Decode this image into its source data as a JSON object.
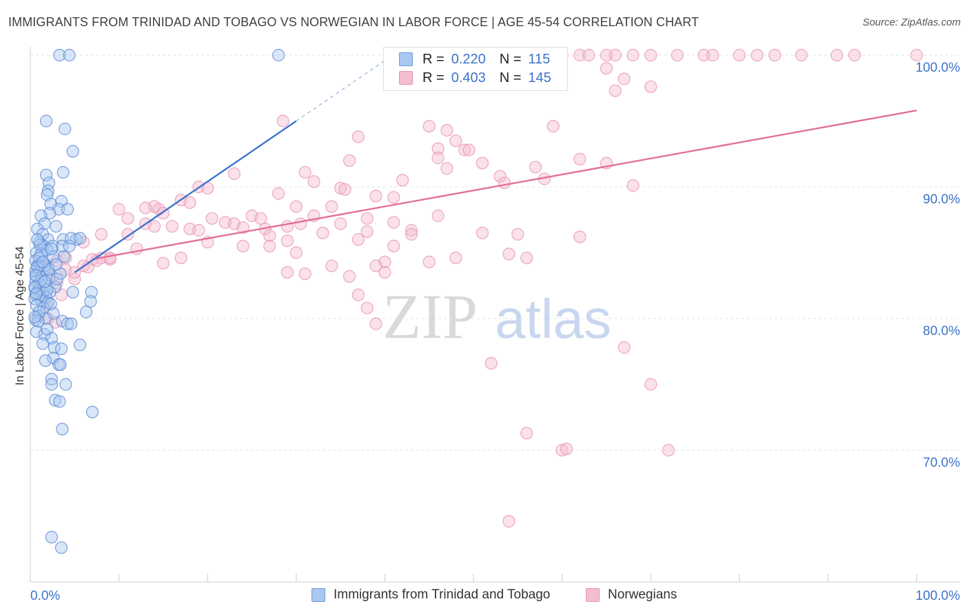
{
  "title": "IMMIGRANTS FROM TRINIDAD AND TOBAGO VS NORWEGIAN IN LABOR FORCE | AGE 45-54 CORRELATION CHART",
  "source": "Source: ZipAtlas.com",
  "watermark": {
    "zip": "ZIP",
    "atlas": "atlas"
  },
  "legend": {
    "r_label": "R =",
    "n_label": "N =",
    "rows": [
      {
        "r": "0.220",
        "n": "115"
      },
      {
        "r": "0.403",
        "n": "145"
      }
    ]
  },
  "bottom_legend": {
    "series1": "Immigrants from Trinidad and Tobago",
    "series2": "Norwegians"
  },
  "x_axis_labels": {
    "left": "0.0%",
    "right": "100.0%"
  },
  "colors": {
    "blue": "#3d73c9",
    "blue_fill": "#a9c7ef",
    "pink": "#e26f99",
    "pink_fill": "#f4bcd0",
    "grid": "#e3e3e3"
  },
  "chart_data": {
    "type": "scatter",
    "xlabel": "",
    "ylabel": "In Labor Force | Age 45-54",
    "xlim": [
      0,
      100
    ],
    "ylim": [
      60,
      100
    ],
    "y_ticks": [
      70,
      80,
      90,
      100
    ],
    "y_tick_labels": [
      "70.0%",
      "80.0%",
      "90.0%",
      "100.0%"
    ],
    "grid": true,
    "series": [
      {
        "name": "Immigrants from Trinidad and Tobago",
        "color": "#3d73c9",
        "R": 0.22,
        "N": 115,
        "trend": {
          "x": [
            5,
            30
          ],
          "y": [
            83.5,
            95.0
          ]
        },
        "trend_dashed": {
          "x": [
            30,
            42
          ],
          "y": [
            95.0,
            100.5
          ]
        },
        "points": [
          [
            3.3,
            100
          ],
          [
            4.4,
            100
          ],
          [
            28,
            100
          ],
          [
            1.8,
            95.0
          ],
          [
            3.9,
            94.4
          ],
          [
            4.8,
            92.7
          ],
          [
            3.7,
            91.1
          ],
          [
            1.8,
            90.9
          ],
          [
            2.1,
            90.3
          ],
          [
            2.0,
            89.7
          ],
          [
            1.9,
            89.4
          ],
          [
            3.5,
            88.9
          ],
          [
            2.3,
            88.7
          ],
          [
            3.2,
            88.3
          ],
          [
            4.2,
            88.3
          ],
          [
            2.2,
            88.0
          ],
          [
            1.2,
            87.8
          ],
          [
            1.6,
            87.2
          ],
          [
            2.9,
            87.0
          ],
          [
            0.8,
            86.8
          ],
          [
            1.4,
            86.4
          ],
          [
            2.0,
            86.0
          ],
          [
            3.7,
            86.0
          ],
          [
            5.2,
            86.0
          ],
          [
            1.0,
            85.8
          ],
          [
            1.5,
            85.5
          ],
          [
            2.5,
            85.5
          ],
          [
            3.6,
            85.5
          ],
          [
            4.4,
            85.5
          ],
          [
            1.9,
            85.2
          ],
          [
            0.7,
            85.0
          ],
          [
            1.2,
            84.9
          ],
          [
            2.6,
            84.7
          ],
          [
            3.8,
            84.7
          ],
          [
            0.6,
            84.4
          ],
          [
            1.5,
            84.2
          ],
          [
            0.8,
            84.0
          ],
          [
            1.1,
            84.0
          ],
          [
            2.0,
            83.8
          ],
          [
            0.6,
            83.6
          ],
          [
            1.0,
            83.5
          ],
          [
            3.4,
            83.4
          ],
          [
            0.7,
            83.2
          ],
          [
            1.3,
            83.1
          ],
          [
            2.1,
            83.0
          ],
          [
            0.6,
            82.8
          ],
          [
            1.0,
            82.6
          ],
          [
            1.7,
            82.5
          ],
          [
            2.8,
            82.4
          ],
          [
            0.5,
            82.3
          ],
          [
            0.9,
            82.1
          ],
          [
            1.4,
            82.0
          ],
          [
            2.2,
            82.0
          ],
          [
            4.8,
            82.0
          ],
          [
            6.9,
            82.0
          ],
          [
            0.6,
            81.8
          ],
          [
            1.1,
            81.7
          ],
          [
            1.8,
            81.6
          ],
          [
            0.5,
            81.5
          ],
          [
            1.3,
            81.3
          ],
          [
            2.0,
            81.2
          ],
          [
            0.7,
            81.0
          ],
          [
            1.5,
            80.8
          ],
          [
            6.8,
            81.3
          ],
          [
            6.3,
            80.5
          ],
          [
            2.6,
            80.4
          ],
          [
            0.9,
            80.2
          ],
          [
            1.7,
            80.0
          ],
          [
            0.6,
            79.9
          ],
          [
            3.6,
            79.8
          ],
          [
            4.2,
            79.6
          ],
          [
            4.6,
            79.6
          ],
          [
            0.7,
            79.0
          ],
          [
            1.6,
            78.8
          ],
          [
            2.4,
            78.5
          ],
          [
            1.4,
            78.1
          ],
          [
            2.7,
            77.8
          ],
          [
            3.5,
            77.7
          ],
          [
            5.6,
            78.0
          ],
          [
            2.6,
            77.0
          ],
          [
            1.7,
            76.8
          ],
          [
            3.2,
            76.5
          ],
          [
            3.4,
            76.5
          ],
          [
            2.4,
            75.4
          ],
          [
            4.0,
            75.0
          ],
          [
            2.4,
            75.0
          ],
          [
            2.8,
            73.8
          ],
          [
            3.3,
            73.7
          ],
          [
            7.0,
            72.9
          ],
          [
            3.6,
            71.6
          ],
          [
            2.4,
            63.4
          ],
          [
            3.5,
            62.6
          ],
          [
            1.0,
            84.6
          ],
          [
            1.6,
            84.0
          ],
          [
            0.8,
            83.9
          ],
          [
            1.2,
            82.9
          ],
          [
            0.5,
            82.4
          ],
          [
            1.9,
            82.2
          ],
          [
            2.3,
            81.1
          ],
          [
            1.0,
            80.5
          ],
          [
            0.9,
            79.8
          ],
          [
            2.1,
            83.7
          ],
          [
            3.0,
            83.0
          ],
          [
            0.6,
            83.3
          ],
          [
            1.4,
            84.3
          ],
          [
            2.9,
            84.1
          ],
          [
            1.1,
            85.6
          ],
          [
            0.8,
            86.0
          ],
          [
            4.6,
            86.1
          ],
          [
            5.6,
            86.1
          ],
          [
            0.7,
            81.9
          ],
          [
            1.6,
            82.8
          ],
          [
            2.4,
            85.3
          ],
          [
            1.9,
            79.2
          ],
          [
            0.5,
            80.1
          ]
        ]
      },
      {
        "name": "Norwegians",
        "color": "#e26f99",
        "R": 0.403,
        "N": 145,
        "trend": {
          "x": [
            7,
            100
          ],
          "y": [
            84.5,
            95.8
          ]
        },
        "points": [
          [
            60,
            100
          ],
          [
            62,
            100
          ],
          [
            63,
            100
          ],
          [
            65,
            100
          ],
          [
            66,
            100
          ],
          [
            68,
            100
          ],
          [
            70,
            100
          ],
          [
            73,
            100
          ],
          [
            76,
            100
          ],
          [
            77,
            100
          ],
          [
            80,
            100
          ],
          [
            82,
            100
          ],
          [
            84,
            100
          ],
          [
            87,
            100
          ],
          [
            91,
            100
          ],
          [
            93,
            100
          ],
          [
            100,
            100
          ],
          [
            59,
            99.3
          ],
          [
            65,
            99.0
          ],
          [
            57,
            98.7
          ],
          [
            67,
            98.2
          ],
          [
            70,
            97.6
          ],
          [
            66,
            97.3
          ],
          [
            28.5,
            95.0
          ],
          [
            45,
            94.6
          ],
          [
            59,
            94.6
          ],
          [
            47,
            94.3
          ],
          [
            37,
            93.8
          ],
          [
            48,
            93.5
          ],
          [
            46,
            92.9
          ],
          [
            49,
            92.8
          ],
          [
            49.5,
            92.8
          ],
          [
            36,
            92.0
          ],
          [
            46,
            92.2
          ],
          [
            51,
            91.8
          ],
          [
            62,
            92.1
          ],
          [
            47,
            91.4
          ],
          [
            65,
            91.8
          ],
          [
            57,
            91.5
          ],
          [
            31,
            91.1
          ],
          [
            23,
            91.0
          ],
          [
            53,
            90.8
          ],
          [
            32,
            90.4
          ],
          [
            42,
            90.5
          ],
          [
            53.5,
            90.3
          ],
          [
            58,
            90.6
          ],
          [
            68,
            90.1
          ],
          [
            19,
            90.0
          ],
          [
            20,
            89.9
          ],
          [
            35,
            89.9
          ],
          [
            35.5,
            89.8
          ],
          [
            28,
            89.5
          ],
          [
            39,
            89.3
          ],
          [
            41,
            89.2
          ],
          [
            17,
            89.0
          ],
          [
            18,
            88.8
          ],
          [
            14,
            88.5
          ],
          [
            13,
            88.4
          ],
          [
            10,
            88.3
          ],
          [
            14.5,
            88.3
          ],
          [
            15,
            88.0
          ],
          [
            30,
            88.5
          ],
          [
            34,
            88.5
          ],
          [
            11,
            87.6
          ],
          [
            20.5,
            87.6
          ],
          [
            25,
            87.8
          ],
          [
            26,
            87.6
          ],
          [
            32,
            87.8
          ],
          [
            38,
            87.6
          ],
          [
            46,
            87.8
          ],
          [
            22,
            87.3
          ],
          [
            23,
            87.2
          ],
          [
            30.5,
            87.2
          ],
          [
            13,
            87.2
          ],
          [
            14,
            87.0
          ],
          [
            16,
            87.0
          ],
          [
            18,
            86.8
          ],
          [
            24,
            86.9
          ],
          [
            26.5,
            86.8
          ],
          [
            29,
            87.0
          ],
          [
            35,
            87.2
          ],
          [
            41,
            87.3
          ],
          [
            19,
            86.7
          ],
          [
            33,
            86.5
          ],
          [
            38,
            86.6
          ],
          [
            43,
            86.7
          ],
          [
            51,
            86.5
          ],
          [
            43,
            86.4
          ],
          [
            55,
            86.4
          ],
          [
            62,
            86.2
          ],
          [
            8,
            86.4
          ],
          [
            11,
            86.4
          ],
          [
            27,
            86.3
          ],
          [
            37,
            86.0
          ],
          [
            6,
            85.8
          ],
          [
            29,
            85.9
          ],
          [
            20,
            85.8
          ],
          [
            24,
            85.5
          ],
          [
            27,
            85.5
          ],
          [
            41,
            85.5
          ],
          [
            30,
            85.0
          ],
          [
            4,
            84.6
          ],
          [
            8,
            84.6
          ],
          [
            7,
            84.5
          ],
          [
            9,
            84.5
          ],
          [
            17,
            84.6
          ],
          [
            54,
            84.9
          ],
          [
            56,
            84.6
          ],
          [
            48,
            84.6
          ],
          [
            40,
            84.3
          ],
          [
            45,
            84.3
          ],
          [
            3,
            84.4
          ],
          [
            34,
            84.0
          ],
          [
            39,
            84.0
          ],
          [
            40,
            83.5
          ],
          [
            36,
            83.2
          ],
          [
            29,
            83.5
          ],
          [
            31,
            83.4
          ],
          [
            2.5,
            83.2
          ],
          [
            5,
            83.0
          ],
          [
            4,
            83.7
          ],
          [
            2,
            84.0
          ],
          [
            6,
            84.0
          ],
          [
            3,
            82.7
          ],
          [
            3.5,
            81.8
          ],
          [
            37,
            81.8
          ],
          [
            38,
            80.8
          ],
          [
            39,
            79.6
          ],
          [
            52,
            76.6
          ],
          [
            67,
            77.8
          ],
          [
            70,
            75.0
          ],
          [
            56,
            71.3
          ],
          [
            60,
            70.0
          ],
          [
            60.5,
            70.1
          ],
          [
            72,
            70.0
          ],
          [
            54,
            64.6
          ],
          [
            9,
            84.6
          ],
          [
            12,
            85.3
          ],
          [
            5,
            83.5
          ],
          [
            2,
            80.0
          ],
          [
            2.8,
            79.7
          ],
          [
            1.8,
            81.0
          ],
          [
            6.5,
            83.9
          ],
          [
            7.5,
            84.4
          ],
          [
            15,
            84.2
          ]
        ]
      }
    ]
  }
}
